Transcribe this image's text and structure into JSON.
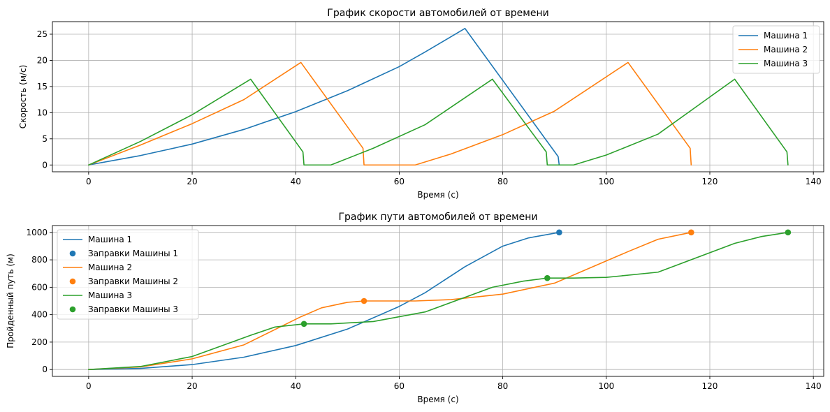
{
  "chart_data": [
    {
      "type": "line",
      "title": "График скорости автомобилей от времени",
      "xlabel": "Время (с)",
      "ylabel": "Скорость (м/с)",
      "xlim": [
        -7,
        142
      ],
      "ylim": [
        -1.3,
        27.4
      ],
      "xticks": [
        0,
        20,
        40,
        60,
        80,
        100,
        120,
        140
      ],
      "yticks": [
        0,
        5,
        10,
        15,
        20,
        25
      ],
      "grid": true,
      "legend_position": "top-right",
      "series": [
        {
          "name": "Машина 1",
          "color": "#1f77b4",
          "x": [
            0,
            10,
            20,
            30,
            40,
            50,
            60,
            65,
            72.7,
            90.7,
            90.9
          ],
          "y": [
            0,
            1.8,
            4.0,
            6.8,
            10.2,
            14.2,
            18.8,
            21.6,
            26.1,
            1.6,
            0
          ]
        },
        {
          "name": "Машина 2",
          "color": "#ff7f0e",
          "x": [
            0,
            10,
            20,
            30,
            41,
            53.0,
            53.2,
            63.1,
            70,
            80,
            90,
            104.2,
            116.2,
            116.4
          ],
          "y": [
            0,
            3.8,
            7.9,
            12.5,
            19.6,
            3.2,
            0,
            0,
            2.1,
            5.8,
            10.3,
            19.6,
            3.2,
            0
          ]
        },
        {
          "name": "Машина 3",
          "color": "#2ca02c",
          "x": [
            0,
            10,
            20,
            31.3,
            41.4,
            41.6,
            46.8,
            55,
            65,
            78,
            88.4,
            88.6,
            93.7,
            100,
            110,
            124.8,
            134.9,
            135.1
          ],
          "y": [
            0,
            4.5,
            9.6,
            16.4,
            2.5,
            0,
            0,
            3.2,
            7.7,
            16.4,
            2.5,
            0,
            0,
            1.9,
            5.9,
            16.4,
            2.5,
            0
          ]
        }
      ]
    },
    {
      "type": "line",
      "title": "График пути автомобилей от времени",
      "xlabel": "Время (с)",
      "ylabel": "Пройденный путь (м)",
      "xlim": [
        -7,
        142
      ],
      "ylim": [
        -50,
        1050
      ],
      "xticks": [
        0,
        20,
        40,
        60,
        80,
        100,
        120,
        140
      ],
      "yticks": [
        0,
        200,
        400,
        600,
        800,
        1000
      ],
      "grid": true,
      "legend_position": "top-left",
      "series": [
        {
          "name": "Машина 1",
          "color": "#1f77b4",
          "x": [
            0,
            10,
            20,
            30,
            40,
            50,
            60,
            65,
            72.7,
            80,
            85,
            90.9
          ],
          "y": [
            0,
            8,
            36,
            90,
            175,
            295,
            460,
            560,
            750,
            900,
            960,
            1000
          ]
        },
        {
          "name": "Машина 2",
          "color": "#ff7f0e",
          "x": [
            0,
            10,
            20,
            30,
            41,
            45,
            50,
            53.2,
            63.1,
            70,
            80,
            90,
            104.2,
            110,
            116.4
          ],
          "y": [
            0,
            19,
            78,
            180,
            385,
            450,
            490,
            500,
            500,
            510,
            550,
            630,
            860,
            950,
            1000
          ]
        },
        {
          "name": "Машина 3",
          "color": "#2ca02c",
          "x": [
            0,
            10,
            20,
            31.3,
            36,
            41.6,
            46.8,
            55,
            65,
            78,
            84,
            88.6,
            93.7,
            100,
            110,
            124.8,
            130,
            135.1
          ],
          "y": [
            0,
            22,
            95,
            250,
            310,
            333,
            333,
            350,
            420,
            600,
            645,
            667,
            667,
            672,
            710,
            920,
            970,
            1000
          ]
        }
      ],
      "scatter": [
        {
          "name": "Заправки Машины 1",
          "color": "#1f77b4",
          "x": [
            90.9
          ],
          "y": [
            1000
          ]
        },
        {
          "name": "Заправки Машины 2",
          "color": "#ff7f0e",
          "x": [
            53.2,
            116.4
          ],
          "y": [
            500,
            1000
          ]
        },
        {
          "name": "Заправки Машины 3",
          "color": "#2ca02c",
          "x": [
            41.6,
            88.6,
            135.1
          ],
          "y": [
            333,
            667,
            1000
          ]
        }
      ],
      "legend_order": [
        {
          "kind": "line",
          "ref": 0
        },
        {
          "kind": "scatter",
          "ref": 0
        },
        {
          "kind": "line",
          "ref": 1
        },
        {
          "kind": "scatter",
          "ref": 1
        },
        {
          "kind": "line",
          "ref": 2
        },
        {
          "kind": "scatter",
          "ref": 2
        }
      ]
    }
  ]
}
